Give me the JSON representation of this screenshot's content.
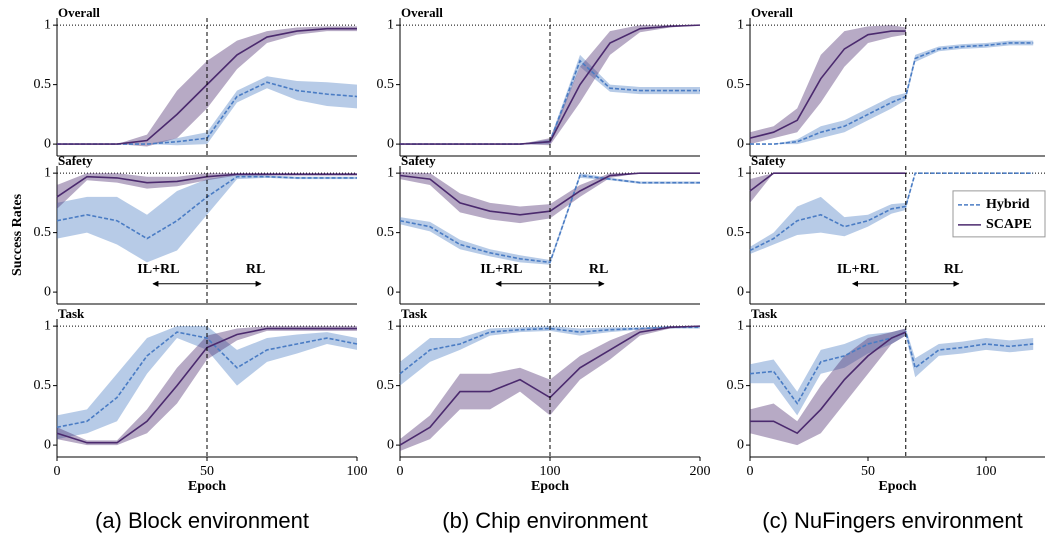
{
  "chart_data": [
    {
      "type": "line",
      "title": "Overall",
      "x": [
        0,
        10,
        20,
        30,
        40,
        50,
        60,
        70,
        80,
        90,
        100
      ],
      "xlim": [
        0,
        100
      ],
      "ylim": [
        -0.1,
        1.06
      ],
      "yticks": [
        0,
        0.5,
        1
      ],
      "switch_epoch": 50,
      "series": [
        {
          "color": "#4a7cc4",
          "style": "dashed",
          "values": [
            0,
            0,
            0,
            0,
            0.02,
            0.05,
            0.4,
            0.52,
            0.45,
            0.42,
            0.4
          ],
          "err": [
            0,
            0,
            0,
            0,
            0.03,
            0.05,
            0.05,
            0.05,
            0.08,
            0.1,
            0.1
          ]
        },
        {
          "color": "#4b2a6e",
          "style": "solid",
          "values": [
            0,
            0,
            0,
            0.03,
            0.25,
            0.5,
            0.75,
            0.9,
            0.95,
            0.97,
            0.97
          ],
          "err": [
            0,
            0,
            0,
            0.05,
            0.2,
            0.2,
            0.12,
            0.05,
            0.03,
            0.02,
            0.02
          ]
        }
      ]
    },
    {
      "type": "line",
      "title": "Overall",
      "x": [
        0,
        20,
        40,
        60,
        80,
        100,
        120,
        140,
        160,
        180,
        200
      ],
      "xlim": [
        0,
        200
      ],
      "ylim": [
        -0.1,
        1.06
      ],
      "yticks": [
        0,
        0.5,
        1
      ],
      "switch_epoch": 100,
      "series": [
        {
          "color": "#4a7cc4",
          "style": "dashed",
          "values": [
            0,
            0,
            0,
            0,
            0,
            0.02,
            0.7,
            0.47,
            0.45,
            0.45,
            0.45
          ],
          "err": [
            0,
            0,
            0,
            0,
            0,
            0.02,
            0.05,
            0.03,
            0.03,
            0.03,
            0.03
          ]
        },
        {
          "color": "#4b2a6e",
          "style": "solid",
          "values": [
            0,
            0,
            0,
            0,
            0,
            0.02,
            0.5,
            0.85,
            0.97,
            0.99,
            1
          ],
          "err": [
            0,
            0,
            0,
            0,
            0,
            0.03,
            0.15,
            0.1,
            0.03,
            0.01,
            0
          ]
        }
      ]
    },
    {
      "type": "line",
      "title": "Overall",
      "x": [
        0,
        10,
        20,
        30,
        40,
        50,
        60,
        66,
        70,
        80,
        90,
        100,
        110,
        120
      ],
      "xlim": [
        0,
        125
      ],
      "ylim": [
        -0.1,
        1.06
      ],
      "yticks": [
        0,
        0.5,
        1
      ],
      "switch_epoch": 66,
      "series": [
        {
          "color": "#4a7cc4",
          "style": "dashed",
          "values": [
            0,
            0,
            0.02,
            0.1,
            0.15,
            0.25,
            0.35,
            0.4,
            0.72,
            0.8,
            0.82,
            0.83,
            0.85,
            0.85
          ],
          "err": [
            0,
            0,
            0.02,
            0.05,
            0.05,
            0.05,
            0.05,
            0.03,
            0.03,
            0.02,
            0.02,
            0.02,
            0.02,
            0.02
          ]
        },
        {
          "color": "#4b2a6e",
          "style": "solid",
          "values": [
            0.05,
            0.1,
            0.2,
            0.55,
            0.8,
            0.92,
            0.95,
            0.95,
            null,
            null,
            null,
            null,
            null,
            null
          ],
          "err": [
            0.05,
            0.05,
            0.1,
            0.2,
            0.15,
            0.07,
            0.05,
            0.03,
            null,
            null,
            null,
            null,
            null,
            null
          ]
        }
      ]
    },
    {
      "type": "line",
      "title": "Safety",
      "ylabel": "Success Rates",
      "x": [
        0,
        10,
        20,
        30,
        40,
        50,
        60,
        70,
        80,
        90,
        100
      ],
      "xlim": [
        0,
        100
      ],
      "ylim": [
        -0.1,
        1.06
      ],
      "yticks": [
        0,
        0.5,
        1
      ],
      "switch_epoch": 50,
      "annotations": [
        {
          "text": "IL+RL"
        },
        {
          "text": "RL"
        }
      ],
      "series": [
        {
          "color": "#4a7cc4",
          "style": "dashed",
          "values": [
            0.6,
            0.65,
            0.6,
            0.45,
            0.6,
            0.8,
            0.97,
            0.97,
            0.96,
            0.96,
            0.96
          ],
          "err": [
            0.15,
            0.15,
            0.2,
            0.2,
            0.25,
            0.15,
            0.02,
            0.01,
            0.01,
            0.01,
            0.01
          ]
        },
        {
          "color": "#4b2a6e",
          "style": "solid",
          "values": [
            0.8,
            0.97,
            0.96,
            0.92,
            0.93,
            0.97,
            0.99,
            0.99,
            0.99,
            0.99,
            0.99
          ],
          "err": [
            0.1,
            0.03,
            0.04,
            0.05,
            0.04,
            0.03,
            0.01,
            0.01,
            0.01,
            0.01,
            0.01
          ]
        }
      ]
    },
    {
      "type": "line",
      "title": "Safety",
      "x": [
        0,
        20,
        40,
        60,
        80,
        100,
        120,
        140,
        160,
        180,
        200
      ],
      "xlim": [
        0,
        200
      ],
      "ylim": [
        -0.1,
        1.06
      ],
      "yticks": [
        0,
        0.5,
        1
      ],
      "switch_epoch": 100,
      "annotations": [
        {
          "text": "IL+RL"
        },
        {
          "text": "RL"
        }
      ],
      "series": [
        {
          "color": "#4a7cc4",
          "style": "dashed",
          "values": [
            0.6,
            0.55,
            0.4,
            0.33,
            0.28,
            0.25,
            0.98,
            0.95,
            0.92,
            0.92,
            0.92
          ],
          "err": [
            0.03,
            0.04,
            0.04,
            0.03,
            0.03,
            0.02,
            0.02,
            0.01,
            0.01,
            0.01,
            0.01
          ]
        },
        {
          "color": "#4b2a6e",
          "style": "solid",
          "values": [
            0.98,
            0.95,
            0.75,
            0.68,
            0.65,
            0.68,
            0.85,
            0.98,
            1,
            1,
            1
          ],
          "err": [
            0.03,
            0.05,
            0.08,
            0.07,
            0.07,
            0.06,
            0.05,
            0.02,
            0,
            0,
            0
          ]
        }
      ]
    },
    {
      "type": "line",
      "title": "Safety",
      "x": [
        0,
        10,
        20,
        30,
        40,
        50,
        60,
        66,
        70,
        80,
        90,
        100,
        110,
        120
      ],
      "xlim": [
        0,
        125
      ],
      "ylim": [
        -0.1,
        1.06
      ],
      "yticks": [
        0,
        0.5,
        1
      ],
      "switch_epoch": 66,
      "legend": "right",
      "annotations": [
        {
          "text": "IL+RL"
        },
        {
          "text": "RL"
        }
      ],
      "series": [
        {
          "name": "Hybrid",
          "color": "#4a7cc4",
          "style": "dashed",
          "values": [
            0.35,
            0.45,
            0.6,
            0.65,
            0.55,
            0.6,
            0.7,
            0.72,
            1,
            1,
            1,
            1,
            1,
            1
          ],
          "err": [
            0.03,
            0.05,
            0.12,
            0.15,
            0.08,
            0.05,
            0.04,
            0.03,
            0,
            0,
            0,
            0,
            0,
            0
          ]
        },
        {
          "name": "SCAPE",
          "color": "#4b2a6e",
          "style": "solid",
          "values": [
            0.85,
            1,
            1,
            1,
            1,
            1,
            1,
            1,
            null,
            null,
            null,
            null,
            null,
            null
          ],
          "err": [
            0.1,
            0,
            0,
            0,
            0,
            0,
            0,
            0,
            null,
            null,
            null,
            null,
            null,
            null
          ]
        }
      ]
    },
    {
      "type": "line",
      "title": "Task",
      "xlabel": "Epoch",
      "caption": "(a) Block environment",
      "x": [
        0,
        10,
        20,
        30,
        40,
        50,
        60,
        70,
        80,
        90,
        100
      ],
      "xlim": [
        0,
        100
      ],
      "xticks": [
        0,
        50,
        100
      ],
      "ylim": [
        -0.1,
        1.06
      ],
      "yticks": [
        0,
        0.5,
        1
      ],
      "switch_epoch": 50,
      "series": [
        {
          "color": "#4a7cc4",
          "style": "dashed",
          "values": [
            0.15,
            0.2,
            0.4,
            0.75,
            0.95,
            0.9,
            0.65,
            0.8,
            0.85,
            0.9,
            0.85
          ],
          "err": [
            0.1,
            0.1,
            0.2,
            0.15,
            0.05,
            0.1,
            0.15,
            0.1,
            0.08,
            0.05,
            0.05
          ]
        },
        {
          "color": "#4b2a6e",
          "style": "solid",
          "values": [
            0.1,
            0.02,
            0.02,
            0.2,
            0.5,
            0.82,
            0.93,
            0.98,
            0.98,
            0.98,
            0.98
          ],
          "err": [
            0.05,
            0.02,
            0.02,
            0.1,
            0.15,
            0.1,
            0.05,
            0.02,
            0.02,
            0.02,
            0.02
          ]
        }
      ]
    },
    {
      "type": "line",
      "title": "Task",
      "xlabel": "Epoch",
      "caption": "(b) Chip environment",
      "x": [
        0,
        20,
        40,
        60,
        80,
        100,
        120,
        140,
        160,
        180,
        200
      ],
      "xlim": [
        0,
        200
      ],
      "xticks": [
        0,
        100,
        200
      ],
      "ylim": [
        -0.1,
        1.06
      ],
      "yticks": [
        0,
        0.5,
        1
      ],
      "switch_epoch": 100,
      "series": [
        {
          "color": "#4a7cc4",
          "style": "dashed",
          "values": [
            0.6,
            0.8,
            0.85,
            0.95,
            0.97,
            0.98,
            0.95,
            0.97,
            0.98,
            0.99,
            0.99
          ],
          "err": [
            0.1,
            0.1,
            0.05,
            0.03,
            0.02,
            0.02,
            0.03,
            0.02,
            0.01,
            0.01,
            0.01
          ]
        },
        {
          "color": "#4b2a6e",
          "style": "solid",
          "values": [
            0,
            0.15,
            0.45,
            0.45,
            0.55,
            0.4,
            0.65,
            0.8,
            0.95,
            0.99,
            1
          ],
          "err": [
            0.05,
            0.1,
            0.15,
            0.15,
            0.1,
            0.15,
            0.1,
            0.08,
            0.03,
            0.01,
            0
          ]
        }
      ]
    },
    {
      "type": "line",
      "title": "Task",
      "xlabel": "Epoch",
      "caption": "(c) NuFingers environment",
      "x": [
        0,
        10,
        20,
        30,
        40,
        50,
        60,
        66,
        70,
        80,
        90,
        100,
        110,
        120
      ],
      "xlim": [
        0,
        125
      ],
      "xticks": [
        0,
        50,
        100
      ],
      "ylim": [
        -0.1,
        1.06
      ],
      "yticks": [
        0,
        0.5,
        1
      ],
      "switch_epoch": 66,
      "series": [
        {
          "color": "#4a7cc4",
          "style": "dashed",
          "values": [
            0.6,
            0.62,
            0.35,
            0.7,
            0.75,
            0.85,
            0.9,
            0.95,
            0.65,
            0.8,
            0.82,
            0.85,
            0.83,
            0.85
          ],
          "err": [
            0.08,
            0.1,
            0.1,
            0.1,
            0.1,
            0.08,
            0.05,
            0.03,
            0.08,
            0.05,
            0.05,
            0.05,
            0.05,
            0.05
          ]
        },
        {
          "color": "#4b2a6e",
          "style": "solid",
          "values": [
            0.2,
            0.2,
            0.1,
            0.3,
            0.55,
            0.75,
            0.9,
            0.95,
            null,
            null,
            null,
            null,
            null,
            null
          ],
          "err": [
            0.1,
            0.15,
            0.1,
            0.2,
            0.2,
            0.15,
            0.05,
            0.03,
            null,
            null,
            null,
            null,
            null,
            null
          ]
        }
      ]
    }
  ]
}
